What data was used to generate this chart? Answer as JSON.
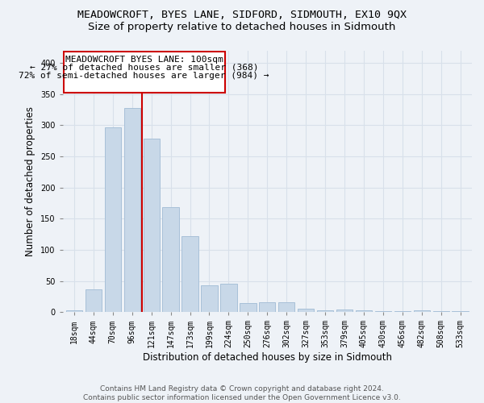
{
  "title": "MEADOWCROFT, BYES LANE, SIDFORD, SIDMOUTH, EX10 9QX",
  "subtitle": "Size of property relative to detached houses in Sidmouth",
  "xlabel": "Distribution of detached houses by size in Sidmouth",
  "ylabel": "Number of detached properties",
  "categories": [
    "18sqm",
    "44sqm",
    "70sqm",
    "96sqm",
    "121sqm",
    "147sqm",
    "173sqm",
    "199sqm",
    "224sqm",
    "250sqm",
    "276sqm",
    "302sqm",
    "327sqm",
    "353sqm",
    "379sqm",
    "405sqm",
    "430sqm",
    "456sqm",
    "482sqm",
    "508sqm",
    "533sqm"
  ],
  "values": [
    3,
    37,
    296,
    327,
    278,
    168,
    122,
    43,
    46,
    15,
    16,
    16,
    5,
    3,
    4,
    3,
    1,
    1,
    3,
    1,
    1
  ],
  "bar_color": "#c8d8e8",
  "bar_edge_color": "#a8c0d8",
  "red_line_x": 3.5,
  "red_line_label": "MEADOWCROFT BYES LANE: 100sqm",
  "annotation_line1": "← 27% of detached houses are smaller (368)",
  "annotation_line2": "72% of semi-detached houses are larger (984) →",
  "box_edge_color": "#cc0000",
  "ylim": [
    0,
    420
  ],
  "yticks": [
    0,
    50,
    100,
    150,
    200,
    250,
    300,
    350,
    400
  ],
  "footer1": "Contains HM Land Registry data © Crown copyright and database right 2024.",
  "footer2": "Contains public sector information licensed under the Open Government Licence v3.0.",
  "bg_color": "#eef2f7",
  "grid_color": "#d8e0ea",
  "title_fontsize": 9.5,
  "subtitle_fontsize": 9.5,
  "tick_fontsize": 7,
  "ylabel_fontsize": 8.5,
  "xlabel_fontsize": 8.5,
  "footer_fontsize": 6.5
}
